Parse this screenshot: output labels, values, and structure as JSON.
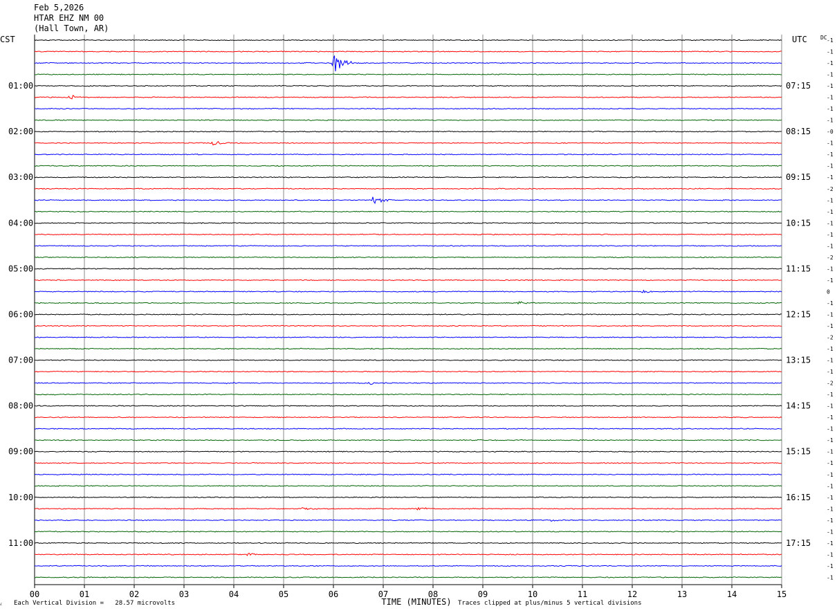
{
  "header": {
    "date": "Feb 5,2026",
    "station": "HTAR EHZ NM 00",
    "location": "(Hall Town, AR)"
  },
  "chart_data": {
    "type": "line",
    "left_tz_label": "CST",
    "right_tz_label": "UTC",
    "offset_column_label": "DC",
    "xlabel": "TIME (MINUTES)",
    "x_ticks": [
      "00",
      "01",
      "02",
      "03",
      "04",
      "05",
      "06",
      "07",
      "08",
      "09",
      "10",
      "11",
      "12",
      "13",
      "14",
      "15"
    ],
    "xlim": [
      0,
      15
    ],
    "trace_colors": [
      "#000000",
      "#ff0000",
      "#0000ff",
      "#006400"
    ],
    "traces_per_hour": 4,
    "minutes_per_trace": 15,
    "trace_count": 48,
    "left_hour_labels": [
      "01:00",
      "02:00",
      "03:00",
      "04:00",
      "05:00",
      "06:00",
      "07:00",
      "08:00",
      "09:00",
      "10:00",
      "11:00"
    ],
    "right_hour_labels": [
      "07:15",
      "08:15",
      "09:15",
      "10:15",
      "11:15",
      "12:15",
      "13:15",
      "14:15",
      "15:15",
      "16:15",
      "17:15"
    ],
    "dc_offsets": [
      "-1",
      "-1",
      "-1",
      "-1",
      "-1",
      "-1",
      "-1",
      "-1",
      "-0",
      "-1",
      "-1",
      "-1",
      "-1",
      "-2",
      "-1",
      "-1",
      "-1",
      "-1",
      "-1",
      "-2",
      "-1",
      "-1",
      "0",
      "-1",
      "-1",
      "-1",
      "-2",
      "-1",
      "-1",
      "-1",
      "-2",
      "-1",
      "-1",
      "-1",
      "-1",
      "-1",
      "-1",
      "-1",
      "-1",
      "-1",
      "-1",
      "-1",
      "-1",
      "-1",
      "-1",
      "-1",
      "-1",
      "-1"
    ],
    "events": [
      {
        "trace": 2,
        "minute": 6.0,
        "amplitude": 5
      },
      {
        "trace": 5,
        "minute": 0.7,
        "amplitude": 1.2
      },
      {
        "trace": 9,
        "minute": 3.55,
        "amplitude": 1.3
      },
      {
        "trace": 14,
        "minute": 6.8,
        "amplitude": 2.0
      },
      {
        "trace": 22,
        "minute": 12.2,
        "amplitude": 0.9
      },
      {
        "trace": 23,
        "minute": 9.7,
        "amplitude": 1.0
      },
      {
        "trace": 30,
        "minute": 3.8,
        "amplitude": 0.6
      },
      {
        "trace": 30,
        "minute": 6.7,
        "amplitude": 0.8
      },
      {
        "trace": 41,
        "minute": 5.4,
        "amplitude": 0.6
      },
      {
        "trace": 41,
        "minute": 7.7,
        "amplitude": 0.8
      },
      {
        "trace": 42,
        "minute": 10.4,
        "amplitude": 0.5
      },
      {
        "trace": 45,
        "minute": 4.3,
        "amplitude": 0.6
      }
    ]
  },
  "footer": {
    "vertical_division_note": "Each Vertical Division =   28.57 microvolts",
    "clipping_note": "Traces clipped at plus/minus 5 vertical divisions"
  }
}
